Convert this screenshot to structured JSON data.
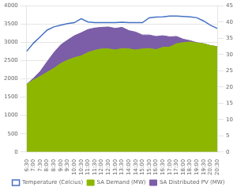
{
  "chart_data": {
    "type": "area",
    "categories": [
      "6:30",
      "7:00",
      "7:30",
      "8:00",
      "8:30",
      "9:00",
      "9:30",
      "10:00",
      "10:30",
      "11:00",
      "11:30",
      "12:00",
      "12:30",
      "13:00",
      "13:30",
      "14:00",
      "14:30",
      "15:00",
      "15:30",
      "16:00",
      "16:30",
      "17:00",
      "17:30",
      "18:00",
      "18:30",
      "19:00",
      "19:30",
      "20:00",
      "20:30"
    ],
    "series": [
      {
        "name": "SA Demand (MW)",
        "color": "#8db600",
        "values": [
          1850,
          1970,
          2070,
          2180,
          2290,
          2420,
          2510,
          2580,
          2630,
          2720,
          2780,
          2820,
          2820,
          2790,
          2830,
          2820,
          2790,
          2820,
          2830,
          2800,
          2860,
          2870,
          2960,
          2990,
          3010,
          2980,
          2960,
          2910,
          2880
        ]
      },
      {
        "name": "SA Distributed PV (MW)",
        "color": "#7b5ea7",
        "values": [
          0,
          50,
          140,
          290,
          430,
          510,
          550,
          600,
          630,
          630,
          610,
          590,
          600,
          590,
          580,
          500,
          490,
          380,
          370,
          360,
          320,
          280,
          200,
          95,
          35,
          10,
          0,
          0,
          0
        ]
      },
      {
        "name": "Temperature (Celcius)",
        "color": "#4472c4",
        "type": "line",
        "axis": "y2",
        "values": [
          31.0,
          33.5,
          35.5,
          37.5,
          38.5,
          39.0,
          39.5,
          39.8,
          41.0,
          40.0,
          39.8,
          39.8,
          39.8,
          39.8,
          39.9,
          39.8,
          39.8,
          39.8,
          41.3,
          41.5,
          41.6,
          41.8,
          41.8,
          41.7,
          41.6,
          41.3,
          40.3,
          39.0,
          38.0
        ]
      }
    ],
    "stacked": true,
    "ylim": [
      0,
      4000
    ],
    "yticks": [
      0,
      500,
      1000,
      1500,
      2000,
      2500,
      3000,
      3500,
      4000
    ],
    "y2lim": [
      0,
      45
    ],
    "y2ticks": [
      0,
      5,
      10,
      15,
      20,
      25,
      30,
      35,
      40,
      45
    ],
    "grid": true,
    "legend": "bottom"
  }
}
